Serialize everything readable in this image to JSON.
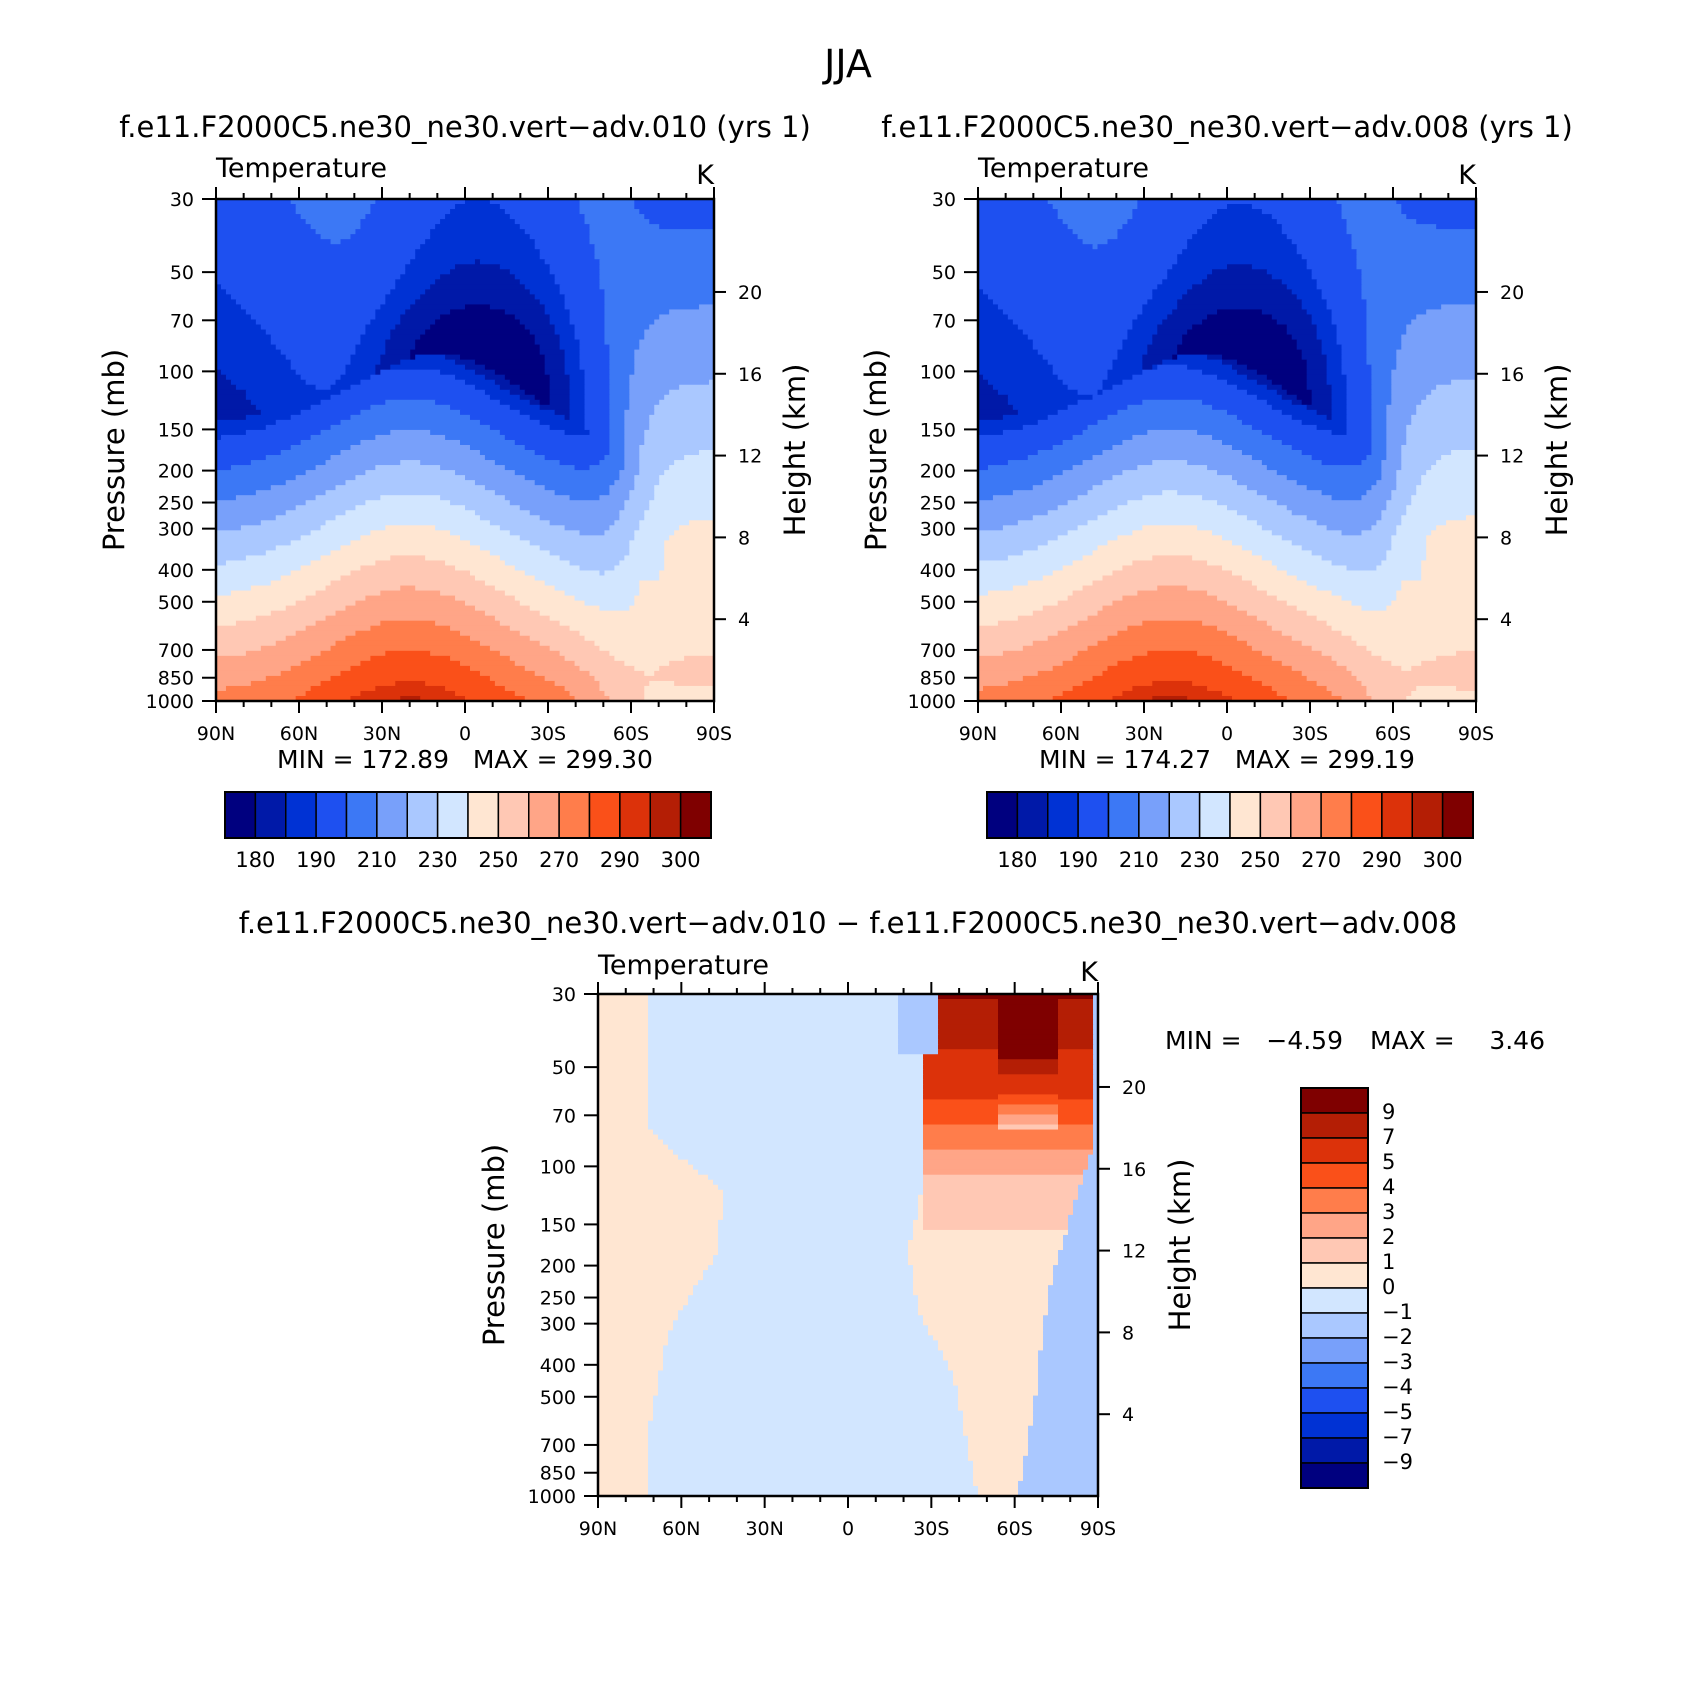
{
  "season_title": "JJA",
  "diff_title": "f.e11.F2000C5.ne30_ne30.vert−adv.010 − f.e11.F2000C5.ne30_ne30.vert−adv.008",
  "chart_data": [
    {
      "type": "heatmap",
      "title": "f.e11.F2000C5.ne30_ne30.vert−adv.010 (yrs 1)",
      "left_label": "Temperature",
      "units": "K",
      "ylabel": "Pressure (mb)",
      "y2label": "Height (km)",
      "x_ticks": [
        "90N",
        "60N",
        "30N",
        "0",
        "30S",
        "60S",
        "90S"
      ],
      "y_ticks": [
        30,
        50,
        70,
        100,
        150,
        200,
        250,
        300,
        400,
        500,
        700,
        850,
        1000
      ],
      "y2_ticks": [
        4,
        8,
        12,
        16,
        20
      ],
      "min": "172.89",
      "max": "299.30",
      "min_max_text": "MIN = 172.89   MAX = 299.30",
      "colorbar_levels": [
        180,
        185,
        190,
        200,
        210,
        220,
        230,
        240,
        250,
        260,
        270,
        280,
        290,
        295,
        300
      ],
      "colorbar_labels": [
        "180",
        "190",
        "210",
        "230",
        "250",
        "270",
        "290",
        "300"
      ]
    },
    {
      "type": "heatmap",
      "title": "f.e11.F2000C5.ne30_ne30.vert−adv.008 (yrs 1)",
      "left_label": "Temperature",
      "units": "K",
      "ylabel": "Pressure (mb)",
      "y2label": "Height (km)",
      "x_ticks": [
        "90N",
        "60N",
        "30N",
        "0",
        "30S",
        "60S",
        "90S"
      ],
      "y_ticks": [
        30,
        50,
        70,
        100,
        150,
        200,
        250,
        300,
        400,
        500,
        700,
        850,
        1000
      ],
      "y2_ticks": [
        4,
        8,
        12,
        16,
        20
      ],
      "min": "174.27",
      "max": "299.19",
      "min_max_text": "MIN = 174.27   MAX = 299.19",
      "colorbar_levels": [
        180,
        185,
        190,
        200,
        210,
        220,
        230,
        240,
        250,
        260,
        270,
        280,
        290,
        295,
        300
      ],
      "colorbar_labels": [
        "180",
        "190",
        "210",
        "230",
        "250",
        "270",
        "290",
        "300"
      ]
    },
    {
      "type": "heatmap",
      "title": "",
      "left_label": "Temperature",
      "units": "K",
      "ylabel": "Pressure (mb)",
      "y2label": "Height (km)",
      "x_ticks": [
        "90N",
        "60N",
        "30N",
        "0",
        "30S",
        "60S",
        "90S"
      ],
      "y_ticks": [
        30,
        50,
        70,
        100,
        150,
        200,
        250,
        300,
        400,
        500,
        700,
        850,
        1000
      ],
      "y2_ticks": [
        4,
        8,
        12,
        16,
        20
      ],
      "min": "−4.59",
      "max": "3.46",
      "min_label": "MIN =",
      "min_value": "−4.59",
      "max_label": "MAX =",
      "max_value": "3.46",
      "colorbar_labels": [
        "9",
        "7",
        "5",
        "4",
        "3",
        "2",
        "1",
        "0",
        "−1",
        "−2",
        "−3",
        "−4",
        "−5",
        "−7",
        "−9"
      ]
    }
  ],
  "palette": {
    "abs": [
      "#00007f",
      "#0019a8",
      "#0032d4",
      "#1e50f0",
      "#3c78f5",
      "#78a0fa",
      "#aac8ff",
      "#d2e6ff",
      "#ffe6d2",
      "#ffc8b4",
      "#ffa587",
      "#ff7d4b",
      "#fa5019",
      "#dc320a",
      "#b41e05",
      "#7f0000"
    ],
    "diff": [
      "#7f0000",
      "#b41e05",
      "#dc320a",
      "#fa5019",
      "#ff7d4b",
      "#ffa587",
      "#ffc8b4",
      "#ffe6d2",
      "#d2e6ff",
      "#aac8ff",
      "#78a0fa",
      "#3c78f5",
      "#1e50f0",
      "#0032d4",
      "#0019a8",
      "#00007f"
    ]
  }
}
